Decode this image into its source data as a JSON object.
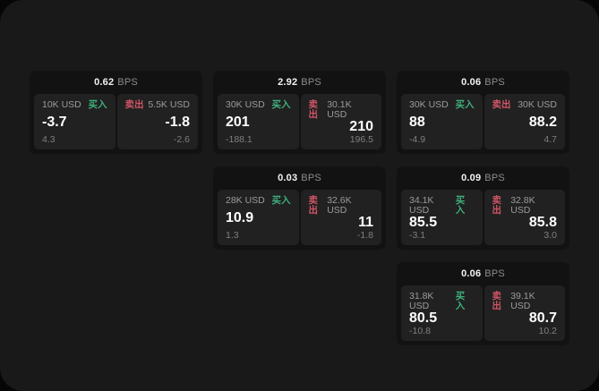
{
  "labels": {
    "bps_unit": "BPS",
    "buy": "买入",
    "sell": "卖出"
  },
  "colors": {
    "background": "#191919",
    "card": "#121212",
    "panel": "#212121",
    "buy_green": "#3fae7c",
    "sell_red": "#cf5566"
  },
  "cards": [
    {
      "bps": "0.62",
      "buy": {
        "size": "10K USD",
        "value": "-3.7",
        "change": "4.3"
      },
      "sell": {
        "size": "5.5K USD",
        "value": "-1.8",
        "change": "-2.6"
      }
    },
    {
      "bps": "2.92",
      "buy": {
        "size": "30K USD",
        "value": "201",
        "change": "-188.1"
      },
      "sell": {
        "size": "30.1K USD",
        "value": "210",
        "change": "196.5"
      }
    },
    {
      "bps": "0.06",
      "buy": {
        "size": "30K USD",
        "value": "88",
        "change": "-4.9"
      },
      "sell": {
        "size": "30K USD",
        "value": "88.2",
        "change": "4.7"
      }
    },
    {
      "bps": "0.03",
      "buy": {
        "size": "28K USD",
        "value": "10.9",
        "change": "1.3"
      },
      "sell": {
        "size": "32.6K USD",
        "value": "11",
        "change": "-1.8"
      }
    },
    {
      "bps": "0.09",
      "buy": {
        "size": "34.1K USD",
        "value": "85.5",
        "change": "-3.1"
      },
      "sell": {
        "size": "32.8K USD",
        "value": "85.8",
        "change": "3.0"
      }
    },
    {
      "bps": "0.06",
      "buy": {
        "size": "31.8K USD",
        "value": "80.5",
        "change": "-10.8"
      },
      "sell": {
        "size": "39.1K USD",
        "value": "80.7",
        "change": "10.2"
      }
    }
  ]
}
